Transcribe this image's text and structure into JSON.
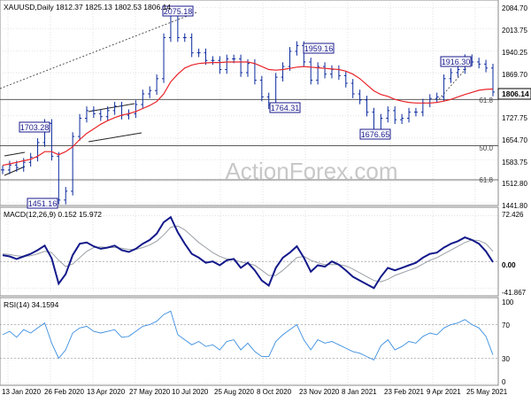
{
  "colors": {
    "price": "#0b2a9e",
    "ma": "#e8242a",
    "macd": "#141a8a",
    "signal": "#9aa0a6",
    "rsi": "#3d8fe0",
    "grid": "#d0d0d0",
    "level": "#444444",
    "frame": "#8a8a8a",
    "label_box": "#1a1a8c",
    "watermark": "#c8c8c8"
  },
  "watermark": "ActionForex.com",
  "panels": {
    "price": {
      "title": "XAUUSD,Daily  1812.37 1825.13 1802.53 1806.14",
      "yticks": [
        "2084.70",
        "2013.75",
        "1940.25",
        "1869.70",
        "1727.75",
        "1654.70",
        "1583.75",
        "1512.80",
        "1441.80"
      ],
      "last_price_label": "1806.14",
      "swing_labels": [
        "2075.18",
        "1959.16",
        "1916.30",
        "1764.31",
        "1703.28",
        "1676.65",
        "1451.16"
      ],
      "fib_labels": [
        "61.8",
        "50.0",
        "61.8"
      ]
    },
    "macd": {
      "title": "MACD(12,26,9) 0.152 15.972",
      "yticks": [
        "72.426",
        "0.00",
        "-41.867"
      ]
    },
    "rsi": {
      "title": "RSI(14) 34.1594",
      "yticks": [
        "100",
        "70",
        "30",
        "0"
      ]
    }
  },
  "x_ticks": [
    "13 Jan 2020",
    "26 Feb 2020",
    "13 Apr 2020",
    "27 May 2020",
    "10 Jul 2020",
    "25 Aug 2020",
    "8 Oct 2020",
    "23 Nov 2020",
    "8 Jan 2021",
    "23 Feb 2021",
    "9 Apr 2021",
    "25 May 2021"
  ],
  "chart_data": [
    {
      "type": "line",
      "series": [
        {
          "values": [
            1550,
            1566,
            1558,
            1575,
            1592,
            1640,
            1703,
            1595,
            1451,
            1480,
            1660,
            1720,
            1745,
            1735,
            1725,
            1745,
            1760,
            1730,
            1735,
            1765,
            1800,
            1811,
            1850,
            1985,
            2075,
            1985,
            1985,
            1935,
            1935,
            1910,
            1910,
            1880,
            1915,
            1915,
            1870,
            1900,
            1845,
            1790,
            1764,
            1855,
            1890,
            1940,
            1959,
            1905,
            1845,
            1890,
            1865,
            1880,
            1860,
            1835,
            1800,
            1780,
            1740,
            1677,
            1720,
            1745,
            1715,
            1720,
            1740,
            1740,
            1770,
            1785,
            1790,
            1850,
            1870,
            1880,
            1916,
            1905,
            1898,
            1885,
            1806
          ]
        },
        {
          "values": [
            1565,
            1570,
            1575,
            1580,
            1585,
            1595,
            1610,
            1610,
            1600,
            1610,
            1626,
            1650,
            1670,
            1685,
            1700,
            1712,
            1722,
            1730,
            1735,
            1742,
            1752,
            1762,
            1775,
            1800,
            1840,
            1865,
            1885,
            1895,
            1900,
            1902,
            1903,
            1903,
            1905,
            1905,
            1905,
            1905,
            1900,
            1890,
            1880,
            1878,
            1880,
            1884,
            1888,
            1890,
            1888,
            1886,
            1884,
            1882,
            1880,
            1875,
            1865,
            1850,
            1830,
            1810,
            1798,
            1792,
            1782,
            1776,
            1772,
            1770,
            1770,
            1770,
            1772,
            1776,
            1782,
            1790,
            1798,
            1805,
            1812,
            1815,
            1816
          ]
        }
      ],
      "yticks": [
        2084.7,
        2013.75,
        1940.25,
        1869.7,
        1727.75,
        1654.7,
        1583.75,
        1512.8,
        1441.8
      ],
      "levels": [
        1781.7,
        1629.8,
        1517.6
      ]
    },
    {
      "type": "line",
      "series": [
        {
          "values": [
            10,
            8,
            4,
            8,
            12,
            18,
            25,
            5,
            -35,
            -20,
            10,
            28,
            30,
            24,
            20,
            22,
            25,
            18,
            15,
            20,
            28,
            34,
            44,
            62,
            70,
            46,
            28,
            12,
            6,
            -2,
            0,
            -6,
            2,
            4,
            -10,
            -2,
            -14,
            -30,
            -38,
            -10,
            6,
            14,
            24,
            6,
            -16,
            -6,
            -8,
            0,
            -5,
            -14,
            -24,
            -30,
            -36,
            -42,
            -24,
            -10,
            -14,
            -10,
            -6,
            -2,
            6,
            12,
            14,
            22,
            28,
            32,
            38,
            34,
            28,
            16,
            -1
          ]
        },
        {
          "values": [
            12,
            11,
            9,
            8,
            9,
            12,
            16,
            14,
            2,
            -8,
            -4,
            6,
            16,
            22,
            23,
            22,
            22,
            21,
            19,
            19,
            22,
            26,
            32,
            42,
            54,
            56,
            50,
            40,
            30,
            22,
            14,
            8,
            4,
            3,
            -1,
            -3,
            -6,
            -14,
            -22,
            -22,
            -14,
            -4,
            6,
            8,
            2,
            -2,
            -5,
            -5,
            -5,
            -7,
            -12,
            -18,
            -24,
            -30,
            -32,
            -28,
            -22,
            -18,
            -14,
            -10,
            -4,
            2,
            6,
            12,
            18,
            24,
            30,
            34,
            33,
            28,
            16
          ]
        }
      ],
      "yticks": [
        72.426,
        0.0,
        -41.867
      ]
    },
    {
      "type": "line",
      "series": [
        {
          "values": [
            58,
            62,
            55,
            64,
            60,
            66,
            72,
            48,
            30,
            40,
            60,
            66,
            68,
            62,
            60,
            62,
            64,
            55,
            56,
            62,
            68,
            70,
            74,
            82,
            86,
            58,
            52,
            46,
            50,
            44,
            46,
            40,
            50,
            52,
            40,
            48,
            38,
            32,
            32,
            50,
            58,
            64,
            70,
            52,
            40,
            52,
            48,
            50,
            46,
            42,
            38,
            36,
            32,
            28,
            45,
            52,
            40,
            44,
            50,
            48,
            56,
            60,
            58,
            66,
            70,
            72,
            76,
            70,
            66,
            56,
            34
          ]
        }
      ],
      "yticks": [
        100,
        70,
        30,
        0
      ],
      "levels": [
        70,
        30
      ]
    }
  ]
}
